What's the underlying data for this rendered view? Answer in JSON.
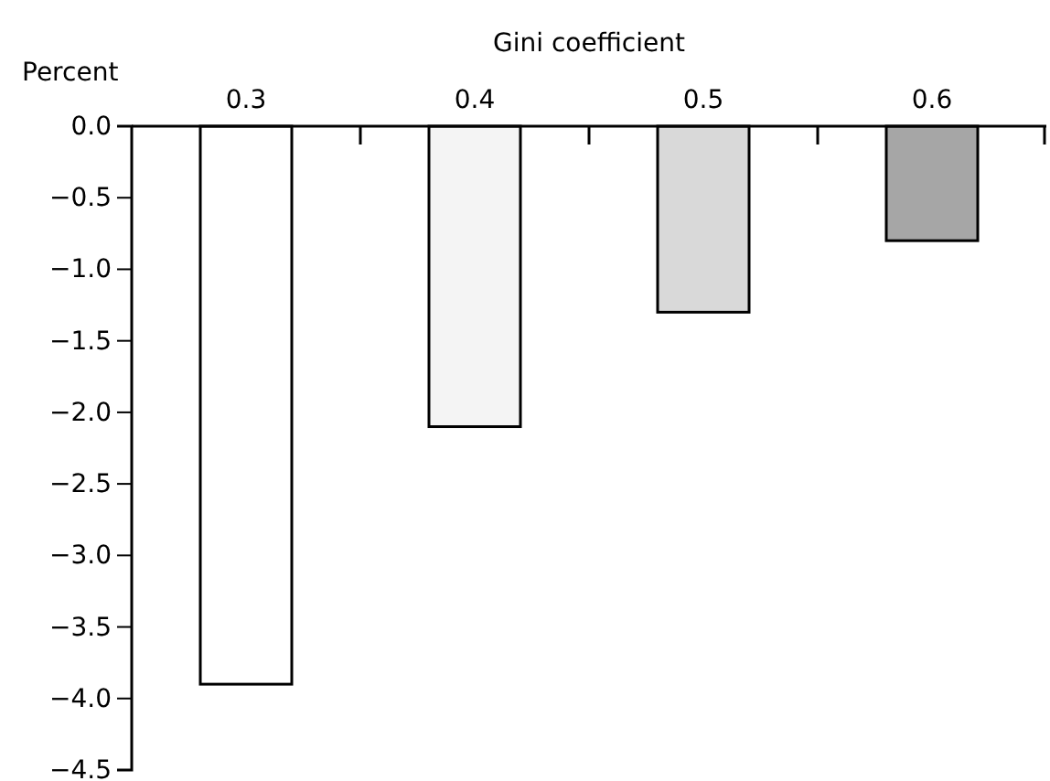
{
  "chart_data": {
    "type": "bar",
    "xlabel": "Gini coefficient",
    "ylabel": "Percent",
    "categories": [
      "0.3",
      "0.4",
      "0.5",
      "0.6"
    ],
    "values": [
      -3.9,
      -2.1,
      -1.3,
      -0.8
    ],
    "colors": [
      "#ffffff",
      "#f4f4f4",
      "#d9d9d9",
      "#a6a6a6"
    ],
    "ylim": [
      -4.5,
      0
    ],
    "yticks": [
      {
        "value": 0,
        "label": "0.0"
      },
      {
        "value": -0.5,
        "label": "−0.5"
      },
      {
        "value": -1,
        "label": "−1.0"
      },
      {
        "value": -1.5,
        "label": "−1.5"
      },
      {
        "value": -2,
        "label": "−2.0"
      },
      {
        "value": -2.5,
        "label": "−2.5"
      },
      {
        "value": -3,
        "label": "−3.0"
      },
      {
        "value": -3.5,
        "label": "−3.5"
      },
      {
        "value": -4,
        "label": "−4.0"
      },
      {
        "value": -4.5,
        "label": "−4.5"
      }
    ],
    "grid": false
  }
}
